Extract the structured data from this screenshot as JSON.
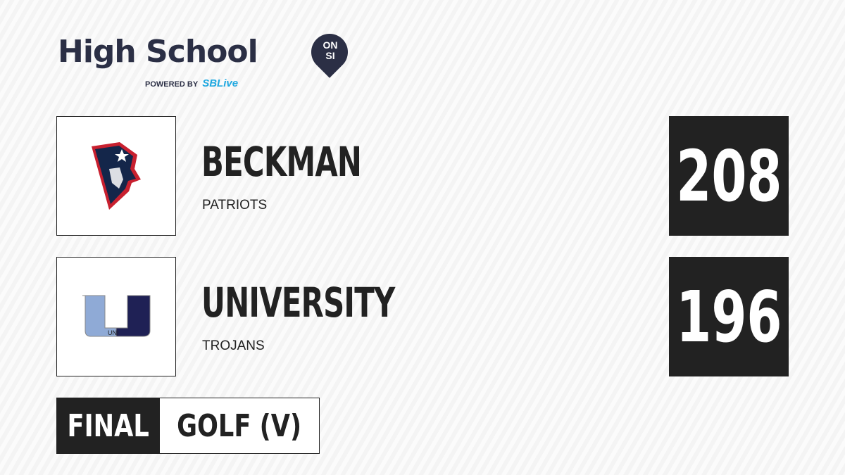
{
  "brand": {
    "title": "High School",
    "badge_top": "ON",
    "badge_bottom": "SI",
    "powered_by": "POWERED BY",
    "partner": "SBLive"
  },
  "teams": [
    {
      "name": "BECKMAN",
      "mascot": "PATRIOTS",
      "score": "208",
      "logo": "patriot-logo"
    },
    {
      "name": "UNIVERSITY",
      "mascot": "TROJANS",
      "score": "196",
      "logo": "u-logo",
      "logo_text": "UNI"
    }
  ],
  "status": {
    "state": "FINAL",
    "sport": "GOLF (V)"
  },
  "colors": {
    "dark": "#222222",
    "brand": "#2b2f45",
    "accent": "#1fa8e0"
  }
}
